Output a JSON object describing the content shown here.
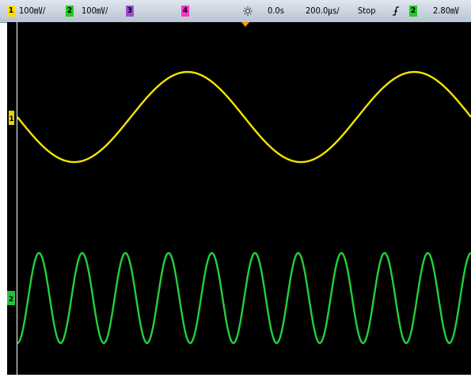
{
  "status_bar": {
    "ch1": {
      "number": "1",
      "scale": "100㎷/",
      "color": "#ffde00"
    },
    "ch2": {
      "number": "2",
      "scale": "100㎷/",
      "color": "#22cc22"
    },
    "ch3": {
      "number": "3",
      "color": "#9b4fd6"
    },
    "ch4": {
      "number": "4",
      "color": "#ff33cc"
    },
    "acquire_icon": "sun-icon",
    "delay": "0.0s",
    "timebase": "200.0㎲/",
    "run_state": "Stop",
    "trigger_icon": "trigger-edge-icon",
    "trigger_source": "2",
    "trigger_level": "2.80㎷"
  },
  "markers": {
    "ch1_marker": "1",
    "ch2_marker": "2",
    "trigger_position_marker": "trigger-position-marker-icon"
  },
  "traces": [
    {
      "channel": "1",
      "color": "#f2e600",
      "cycles_visible": 2,
      "shape": "sine"
    },
    {
      "channel": "2",
      "color": "#21d13a",
      "cycles_visible": 10.5,
      "shape": "sine"
    }
  ]
}
